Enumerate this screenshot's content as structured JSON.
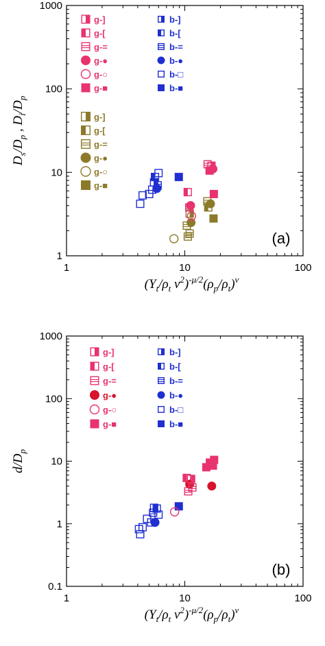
{
  "chart_data": [
    {
      "type": "scatter",
      "panel_label": "(a)",
      "xlabel": "(Y_t/ρ_t v²)^(−μ/2)(ρ_p/ρ_t)^ν",
      "ylabel": "D_s/D_p , D_i/D_p",
      "xscale": "log",
      "yscale": "log",
      "xlim": [
        1,
        100
      ],
      "ylim": [
        1,
        1000
      ],
      "x_tick_labels": [
        "1",
        "10",
        "100"
      ],
      "y_tick_labels": [
        "1",
        "10",
        "100",
        "1000"
      ],
      "grid": false,
      "legend_position": "top-left",
      "colors": {
        "pink": "#e8336e",
        "olive": "#8c7a2a",
        "blue": "#1f2fd0"
      },
      "legend": [
        {
          "label": "g-]",
          "color": "pink",
          "marker": "sq-right"
        },
        {
          "label": "g-[",
          "color": "pink",
          "marker": "sq-left"
        },
        {
          "label": "g-=",
          "color": "pink",
          "marker": "sq-lines"
        },
        {
          "label": "g-●",
          "color": "pink",
          "marker": "circle-filled"
        },
        {
          "label": "g-○",
          "color": "pink",
          "marker": "circle-open"
        },
        {
          "label": "g-■",
          "color": "pink",
          "marker": "sq-filled"
        },
        {
          "label": "g-]",
          "color": "olive",
          "marker": "sq-right"
        },
        {
          "label": "g-[",
          "color": "olive",
          "marker": "sq-left"
        },
        {
          "label": "g-=",
          "color": "olive",
          "marker": "sq-lines"
        },
        {
          "label": "g-●",
          "color": "olive",
          "marker": "circle-filled"
        },
        {
          "label": "g-○",
          "color": "olive",
          "marker": "circle-open"
        },
        {
          "label": "g-■",
          "color": "olive",
          "marker": "sq-filled"
        },
        {
          "label": "b-]",
          "color": "blue",
          "marker": "sq-right"
        },
        {
          "label": "b-[",
          "color": "blue",
          "marker": "sq-left"
        },
        {
          "label": "b-=",
          "color": "blue",
          "marker": "sq-lines"
        },
        {
          "label": "b-●",
          "color": "blue",
          "marker": "circle-filled"
        },
        {
          "label": "b-□",
          "color": "blue",
          "marker": "sq-open"
        },
        {
          "label": "b-■",
          "color": "blue",
          "marker": "sq-filled"
        }
      ],
      "points": [
        {
          "x": 4.2,
          "y": 4.2,
          "color": "blue",
          "marker": "sq-open"
        },
        {
          "x": 4.4,
          "y": 5.3,
          "color": "blue",
          "marker": "sq-open"
        },
        {
          "x": 5.0,
          "y": 5.5,
          "color": "blue",
          "marker": "sq-open"
        },
        {
          "x": 5.3,
          "y": 6.2,
          "color": "blue",
          "marker": "sq-open"
        },
        {
          "x": 5.5,
          "y": 7.6,
          "color": "blue",
          "marker": "sq-right"
        },
        {
          "x": 5.6,
          "y": 8.8,
          "color": "blue",
          "marker": "sq-left"
        },
        {
          "x": 5.8,
          "y": 6.4,
          "color": "blue",
          "marker": "circle-filled"
        },
        {
          "x": 6.0,
          "y": 9.8,
          "color": "blue",
          "marker": "sq-open"
        },
        {
          "x": 5.9,
          "y": 7.0,
          "color": "blue",
          "marker": "sq-lines"
        },
        {
          "x": 8.9,
          "y": 8.8,
          "color": "blue",
          "marker": "sq-filled"
        },
        {
          "x": 8.1,
          "y": 1.6,
          "color": "olive",
          "marker": "circle-open"
        },
        {
          "x": 10.4,
          "y": 2.3,
          "color": "olive",
          "marker": "sq-lines"
        },
        {
          "x": 10.6,
          "y": 1.7,
          "color": "olive",
          "marker": "sq-lines"
        },
        {
          "x": 11.0,
          "y": 1.85,
          "color": "olive",
          "marker": "sq-lines"
        },
        {
          "x": 11.3,
          "y": 2.5,
          "color": "olive",
          "marker": "circle-filled"
        },
        {
          "x": 11.0,
          "y": 3.2,
          "color": "olive",
          "marker": "sq-right"
        },
        {
          "x": 10.6,
          "y": 5.8,
          "color": "pink",
          "marker": "sq-left"
        },
        {
          "x": 10.9,
          "y": 3.8,
          "color": "pink",
          "marker": "sq-lines"
        },
        {
          "x": 11.2,
          "y": 4.0,
          "color": "pink",
          "marker": "circle-filled"
        },
        {
          "x": 11.4,
          "y": 3.0,
          "color": "pink",
          "marker": "circle-open"
        },
        {
          "x": 15.5,
          "y": 4.5,
          "color": "olive",
          "marker": "sq-lines"
        },
        {
          "x": 15.8,
          "y": 3.8,
          "color": "olive",
          "marker": "sq-left"
        },
        {
          "x": 16.5,
          "y": 4.2,
          "color": "olive",
          "marker": "circle-filled"
        },
        {
          "x": 17.5,
          "y": 2.8,
          "color": "olive",
          "marker": "sq-filled"
        },
        {
          "x": 15.6,
          "y": 12.5,
          "color": "pink",
          "marker": "sq-lines"
        },
        {
          "x": 16.2,
          "y": 10.5,
          "color": "pink",
          "marker": "sq-filled"
        },
        {
          "x": 16.8,
          "y": 12.0,
          "color": "pink",
          "marker": "sq-right"
        },
        {
          "x": 17.3,
          "y": 11.0,
          "color": "pink",
          "marker": "circle-filled"
        },
        {
          "x": 17.6,
          "y": 5.5,
          "color": "pink",
          "marker": "sq-filled"
        }
      ]
    },
    {
      "type": "scatter",
      "panel_label": "(b)",
      "xlabel": "(Y_t/ρ_t v²)^(−μ/2)(ρ_p/ρ_t)^ν",
      "ylabel": "d/D_p",
      "xscale": "log",
      "yscale": "log",
      "xlim": [
        1,
        100
      ],
      "ylim": [
        0.1,
        1000
      ],
      "x_tick_labels": [
        "1",
        "10",
        "100"
      ],
      "y_tick_labels": [
        "0.1",
        "1",
        "10",
        "100",
        "1000"
      ],
      "grid": false,
      "legend_position": "top-left",
      "colors": {
        "pink": "#e8336e",
        "red": "#d6142c",
        "blue": "#1f2fd0"
      },
      "legend": [
        {
          "label": "g-]",
          "color": "pink",
          "marker": "sq-right"
        },
        {
          "label": "g-[",
          "color": "pink",
          "marker": "sq-left"
        },
        {
          "label": "g-=",
          "color": "pink",
          "marker": "sq-lines"
        },
        {
          "label": "g-●",
          "color": "red",
          "marker": "circle-filled"
        },
        {
          "label": "g-○",
          "color": "pink",
          "marker": "circle-open"
        },
        {
          "label": "g-■",
          "color": "pink",
          "marker": "sq-filled"
        },
        {
          "label": "b-]",
          "color": "blue",
          "marker": "sq-right"
        },
        {
          "label": "b-[",
          "color": "blue",
          "marker": "sq-left"
        },
        {
          "label": "b-=",
          "color": "blue",
          "marker": "sq-lines"
        },
        {
          "label": "b-●",
          "color": "blue",
          "marker": "circle-filled"
        },
        {
          "label": "b-□",
          "color": "blue",
          "marker": "sq-open"
        },
        {
          "label": "b-■",
          "color": "blue",
          "marker": "sq-filled"
        }
      ],
      "points": [
        {
          "x": 4.1,
          "y": 0.82,
          "color": "blue",
          "marker": "sq-open"
        },
        {
          "x": 4.2,
          "y": 0.68,
          "color": "blue",
          "marker": "sq-open"
        },
        {
          "x": 4.4,
          "y": 0.88,
          "color": "blue",
          "marker": "sq-open"
        },
        {
          "x": 4.8,
          "y": 1.2,
          "color": "blue",
          "marker": "sq-open"
        },
        {
          "x": 5.2,
          "y": 1.05,
          "color": "blue",
          "marker": "sq-open"
        },
        {
          "x": 5.4,
          "y": 1.5,
          "color": "blue",
          "marker": "sq-lines"
        },
        {
          "x": 5.5,
          "y": 1.8,
          "color": "blue",
          "marker": "sq-right"
        },
        {
          "x": 5.6,
          "y": 1.05,
          "color": "blue",
          "marker": "circle-filled"
        },
        {
          "x": 5.8,
          "y": 1.75,
          "color": "blue",
          "marker": "sq-left"
        },
        {
          "x": 6.0,
          "y": 1.4,
          "color": "blue",
          "marker": "sq-open"
        },
        {
          "x": 8.9,
          "y": 1.9,
          "color": "blue",
          "marker": "sq-filled"
        },
        {
          "x": 8.2,
          "y": 1.55,
          "color": "pink",
          "marker": "circle-open"
        },
        {
          "x": 10.4,
          "y": 5.4,
          "color": "pink",
          "marker": "sq-left"
        },
        {
          "x": 10.7,
          "y": 3.3,
          "color": "pink",
          "marker": "sq-lines"
        },
        {
          "x": 11.0,
          "y": 4.3,
          "color": "red",
          "marker": "circle-filled"
        },
        {
          "x": 11.3,
          "y": 5.2,
          "color": "pink",
          "marker": "sq-right"
        },
        {
          "x": 11.6,
          "y": 3.8,
          "color": "pink",
          "marker": "sq-lines"
        },
        {
          "x": 15.2,
          "y": 8.0,
          "color": "pink",
          "marker": "sq-filled"
        },
        {
          "x": 16.3,
          "y": 9.5,
          "color": "pink",
          "marker": "sq-filled"
        },
        {
          "x": 16.9,
          "y": 4.0,
          "color": "red",
          "marker": "circle-filled"
        },
        {
          "x": 17.3,
          "y": 8.5,
          "color": "pink",
          "marker": "sq-filled"
        },
        {
          "x": 17.7,
          "y": 10.5,
          "color": "pink",
          "marker": "sq-filled"
        }
      ]
    }
  ]
}
